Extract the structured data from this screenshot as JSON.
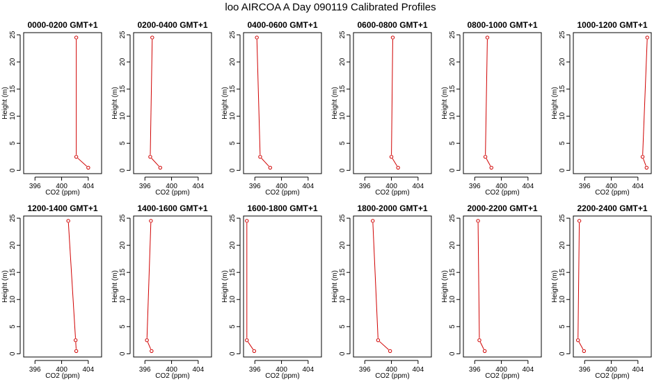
{
  "figure": {
    "title": "loo AIRCOA A  Day 090119  Calibrated Profiles"
  },
  "chart_data": [
    {
      "type": "line",
      "title": "0000-0200 GMT+1",
      "xlabel": "CO2 (ppm)",
      "ylabel": "Height (m)",
      "xlim": [
        394.3,
        406.0
      ],
      "ylim": [
        -0.6,
        25.4
      ],
      "x_ticks": [
        396,
        400,
        404
      ],
      "y_ticks": [
        0,
        5,
        10,
        15,
        20,
        25
      ],
      "grid": false,
      "series": [
        {
          "color": "#d00000",
          "points": [
            {
              "x": 404.0,
              "y": 0.5
            },
            {
              "x": 402.2,
              "y": 2.5
            },
            {
              "x": 402.2,
              "y": 24.5
            }
          ]
        }
      ]
    },
    {
      "type": "line",
      "title": "0200-0400 GMT+1",
      "xlabel": "CO2 (ppm)",
      "ylabel": "Height (m)",
      "xlim": [
        394.3,
        406.0
      ],
      "ylim": [
        -0.6,
        25.4
      ],
      "x_ticks": [
        396,
        400,
        404
      ],
      "y_ticks": [
        0,
        5,
        10,
        15,
        20,
        25
      ],
      "grid": false,
      "series": [
        {
          "color": "#d00000",
          "points": [
            {
              "x": 398.3,
              "y": 0.5
            },
            {
              "x": 396.8,
              "y": 2.5
            },
            {
              "x": 397.1,
              "y": 24.5
            }
          ]
        }
      ]
    },
    {
      "type": "line",
      "title": "0400-0600 GMT+1",
      "xlabel": "CO2 (ppm)",
      "ylabel": "Height (m)",
      "xlim": [
        394.3,
        406.0
      ],
      "ylim": [
        -0.6,
        25.4
      ],
      "x_ticks": [
        396,
        400,
        404
      ],
      "y_ticks": [
        0,
        5,
        10,
        15,
        20,
        25
      ],
      "grid": false,
      "series": [
        {
          "color": "#d00000",
          "points": [
            {
              "x": 398.3,
              "y": 0.5
            },
            {
              "x": 396.8,
              "y": 2.5
            },
            {
              "x": 396.3,
              "y": 24.5
            }
          ]
        }
      ]
    },
    {
      "type": "line",
      "title": "0600-0800 GMT+1",
      "xlabel": "CO2 (ppm)",
      "ylabel": "Height (m)",
      "xlim": [
        394.3,
        406.0
      ],
      "ylim": [
        -0.6,
        25.4
      ],
      "x_ticks": [
        396,
        400,
        404
      ],
      "y_ticks": [
        0,
        5,
        10,
        15,
        20,
        25
      ],
      "grid": false,
      "series": [
        {
          "color": "#d00000",
          "points": [
            {
              "x": 401.0,
              "y": 0.5
            },
            {
              "x": 400.0,
              "y": 2.5
            },
            {
              "x": 400.2,
              "y": 24.5
            }
          ]
        }
      ]
    },
    {
      "type": "line",
      "title": "0800-1000 GMT+1",
      "xlabel": "CO2 (ppm)",
      "ylabel": "Height (m)",
      "xlim": [
        394.3,
        406.0
      ],
      "ylim": [
        -0.6,
        25.4
      ],
      "x_ticks": [
        396,
        400,
        404
      ],
      "y_ticks": [
        0,
        5,
        10,
        15,
        20,
        25
      ],
      "grid": false,
      "series": [
        {
          "color": "#d00000",
          "points": [
            {
              "x": 398.5,
              "y": 0.5
            },
            {
              "x": 397.6,
              "y": 2.5
            },
            {
              "x": 397.9,
              "y": 24.5
            }
          ]
        }
      ]
    },
    {
      "type": "line",
      "title": "1000-1200 GMT+1",
      "xlabel": "CO2 (ppm)",
      "ylabel": "Height (m)",
      "xlim": [
        394.3,
        406.0
      ],
      "ylim": [
        -0.6,
        25.4
      ],
      "x_ticks": [
        396,
        400,
        404
      ],
      "y_ticks": [
        0,
        5,
        10,
        15,
        20,
        25
      ],
      "grid": false,
      "series": [
        {
          "color": "#d00000",
          "points": [
            {
              "x": 405.3,
              "y": 0.5
            },
            {
              "x": 404.7,
              "y": 2.5
            },
            {
              "x": 405.4,
              "y": 24.5
            }
          ]
        }
      ]
    },
    {
      "type": "line",
      "title": "1200-1400 GMT+1",
      "xlabel": "CO2 (ppm)",
      "ylabel": "Height (m)",
      "xlim": [
        394.3,
        406.0
      ],
      "ylim": [
        -0.6,
        25.4
      ],
      "x_ticks": [
        396,
        400,
        404
      ],
      "y_ticks": [
        0,
        5,
        10,
        15,
        20,
        25
      ],
      "grid": false,
      "series": [
        {
          "color": "#d00000",
          "points": [
            {
              "x": 402.2,
              "y": 0.5
            },
            {
              "x": 402.1,
              "y": 2.5
            },
            {
              "x": 401.0,
              "y": 24.5
            }
          ]
        }
      ]
    },
    {
      "type": "line",
      "title": "1400-1600 GMT+1",
      "xlabel": "CO2 (ppm)",
      "ylabel": "Height (m)",
      "xlim": [
        394.3,
        406.0
      ],
      "ylim": [
        -0.6,
        25.4
      ],
      "x_ticks": [
        396,
        400,
        404
      ],
      "y_ticks": [
        0,
        5,
        10,
        15,
        20,
        25
      ],
      "grid": false,
      "series": [
        {
          "color": "#d00000",
          "points": [
            {
              "x": 397.0,
              "y": 0.5
            },
            {
              "x": 396.3,
              "y": 2.5
            },
            {
              "x": 396.9,
              "y": 24.5
            }
          ]
        }
      ]
    },
    {
      "type": "line",
      "title": "1600-1800 GMT+1",
      "xlabel": "CO2 (ppm)",
      "ylabel": "Height (m)",
      "xlim": [
        394.3,
        406.0
      ],
      "ylim": [
        -0.6,
        25.4
      ],
      "x_ticks": [
        396,
        400,
        404
      ],
      "y_ticks": [
        0,
        5,
        10,
        15,
        20,
        25
      ],
      "grid": false,
      "series": [
        {
          "color": "#d00000",
          "points": [
            {
              "x": 395.9,
              "y": 0.5
            },
            {
              "x": 394.8,
              "y": 2.5
            },
            {
              "x": 394.8,
              "y": 24.5
            }
          ]
        }
      ]
    },
    {
      "type": "line",
      "title": "1800-2000 GMT+1",
      "xlabel": "CO2 (ppm)",
      "ylabel": "Height (m)",
      "xlim": [
        394.3,
        406.0
      ],
      "ylim": [
        -0.6,
        25.4
      ],
      "x_ticks": [
        396,
        400,
        404
      ],
      "y_ticks": [
        0,
        5,
        10,
        15,
        20,
        25
      ],
      "grid": false,
      "series": [
        {
          "color": "#d00000",
          "points": [
            {
              "x": 399.8,
              "y": 0.5
            },
            {
              "x": 398.0,
              "y": 2.5
            },
            {
              "x": 397.2,
              "y": 24.5
            }
          ]
        }
      ]
    },
    {
      "type": "line",
      "title": "2000-2200 GMT+1",
      "xlabel": "CO2 (ppm)",
      "ylabel": "Height (m)",
      "xlim": [
        394.3,
        406.0
      ],
      "ylim": [
        -0.6,
        25.4
      ],
      "x_ticks": [
        396,
        400,
        404
      ],
      "y_ticks": [
        0,
        5,
        10,
        15,
        20,
        25
      ],
      "grid": false,
      "series": [
        {
          "color": "#d00000",
          "points": [
            {
              "x": 397.5,
              "y": 0.5
            },
            {
              "x": 396.7,
              "y": 2.5
            },
            {
              "x": 396.5,
              "y": 24.5
            }
          ]
        }
      ]
    },
    {
      "type": "line",
      "title": "2200-2400 GMT+1",
      "xlabel": "CO2 (ppm)",
      "ylabel": "Height (m)",
      "xlim": [
        394.3,
        406.0
      ],
      "ylim": [
        -0.6,
        25.4
      ],
      "x_ticks": [
        396,
        400,
        404
      ],
      "y_ticks": [
        0,
        5,
        10,
        15,
        20,
        25
      ],
      "grid": false,
      "series": [
        {
          "color": "#d00000",
          "points": [
            {
              "x": 395.9,
              "y": 0.5
            },
            {
              "x": 395.0,
              "y": 2.5
            },
            {
              "x": 395.2,
              "y": 24.5
            }
          ]
        }
      ]
    }
  ]
}
